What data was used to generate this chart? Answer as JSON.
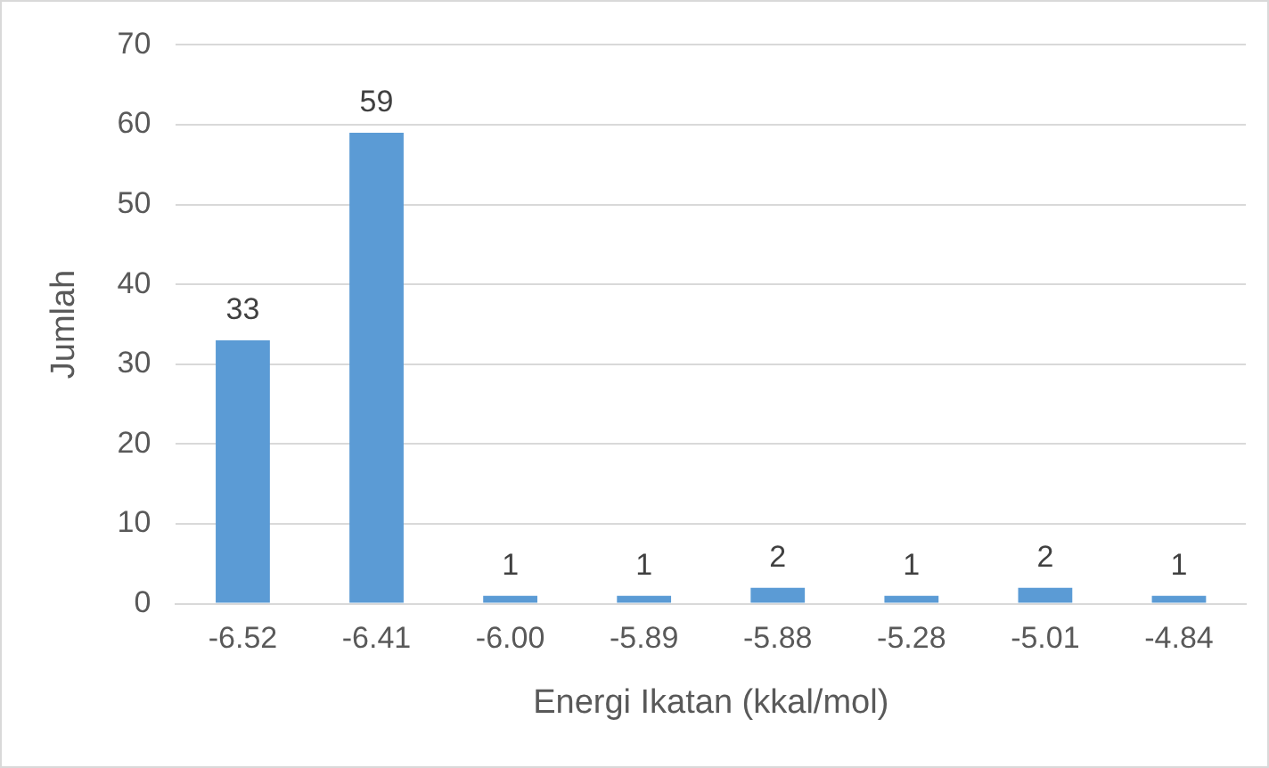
{
  "chart_data": {
    "type": "bar",
    "categories": [
      "-6.52",
      "-6.41",
      "-6.00",
      "-5.89",
      "-5.88",
      "-5.28",
      "-5.01",
      "-4.84"
    ],
    "values": [
      33,
      59,
      1,
      1,
      2,
      1,
      2,
      1
    ],
    "color": "#5b9bd5",
    "xlabel": "Energi Ikatan (kkal/mol)",
    "ylabel": "Jumlah",
    "ylim": [
      0,
      70
    ],
    "yticks": [
      0,
      10,
      20,
      30,
      40,
      50,
      60,
      70
    ],
    "grid": "y",
    "data_labels": true,
    "legend": false
  }
}
